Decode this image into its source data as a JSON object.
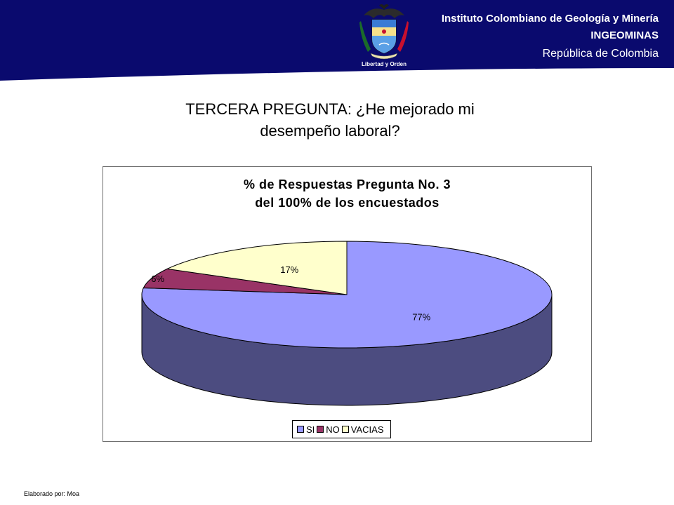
{
  "header": {
    "institute_line1": "Instituto Colombiano de Geología y Minería",
    "institute_line2": "INGEOMINAS",
    "institute_line3": "República de Colombia",
    "crest_motto": "Libertad y Orden",
    "band_color": "#0a0a6e"
  },
  "slide_title": {
    "line1": "TERCERA PREGUNTA: ¿He mejorado mi",
    "line2": "desempeño laboral?"
  },
  "footer": {
    "credit": "Elaborado por: Moa"
  },
  "chart_data": {
    "type": "pie",
    "style": "3d",
    "title": "% de Respuestas Pregunta No. 3",
    "subtitle": "del 100% de los encuestados",
    "legend_position": "bottom",
    "slices": [
      {
        "name": "SI",
        "value": 77,
        "label": "77%",
        "color": "#9999ff",
        "side_color": "#4c4c80"
      },
      {
        "name": "NO",
        "value": 6,
        "label": "6%",
        "color": "#993366",
        "side_color": "#4d1a33"
      },
      {
        "name": "VACIAS",
        "value": 17,
        "label": "17%",
        "color": "#ffffcc",
        "side_color": "#808066"
      }
    ]
  }
}
